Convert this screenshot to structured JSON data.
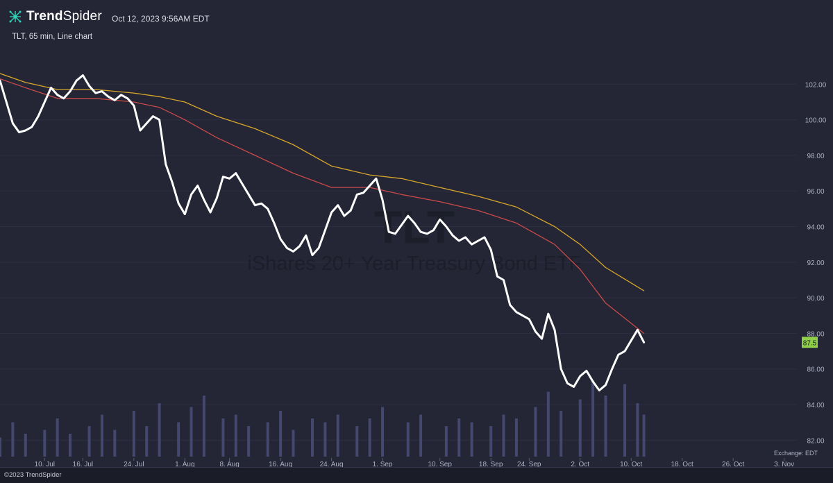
{
  "header": {
    "brand_bold": "Trend",
    "brand_light": "Spider",
    "timestamp": "Oct 12, 2023 9:56AM EDT",
    "chart_description": "TLT, 65 min, Line chart"
  },
  "watermark": {
    "symbol": "TLT",
    "name": "iShares 20+ Year Treasury Bond ETF"
  },
  "exchange_label": "Exchange: EDT",
  "footer": {
    "copyright": "©2023 TrendSpider"
  },
  "colors": {
    "background": "#242635",
    "price": "#ffffff",
    "ma_fast": "#c94a4a",
    "ma_slow": "#d8a72a",
    "last_price_badge": "#8fcf4a",
    "volume": "#4a4e78"
  },
  "chart_data": {
    "type": "line",
    "title": "TLT, 65 min, Line chart",
    "ylim": [
      81,
      104
    ],
    "y_ticks": [
      82,
      84,
      86,
      88,
      90,
      92,
      94,
      96,
      98,
      100,
      102
    ],
    "y_tick_labels": [
      "82.00",
      "84.00",
      "86.00",
      "88.00",
      "90.00",
      "92.00",
      "94.00",
      "96.00",
      "98.00",
      "100.00",
      "102.00"
    ],
    "x_range": [
      "2023-07-03",
      "2023-11-05"
    ],
    "x_ticks": [
      "2023-07-10",
      "2023-07-16",
      "2023-07-24",
      "2023-08-01",
      "2023-08-08",
      "2023-08-16",
      "2023-08-24",
      "2023-09-01",
      "2023-09-10",
      "2023-09-18",
      "2023-09-24",
      "2023-10-02",
      "2023-10-10",
      "2023-10-18",
      "2023-10-26",
      "2023-11-03"
    ],
    "x_tick_labels": [
      "10. Jul",
      "16. Jul",
      "24. Jul",
      "1. Aug",
      "8. Aug",
      "16. Aug",
      "24. Aug",
      "1. Sep",
      "10. Sep",
      "18. Sep",
      "24. Sep",
      "2. Oct",
      "10. Oct",
      "18. Oct",
      "26. Oct",
      "3. Nov"
    ],
    "last_price": 87.5,
    "last_price_label": "87.5",
    "series": [
      {
        "key": "price",
        "x": [
          "2023-07-03",
          "2023-07-04",
          "2023-07-05",
          "2023-07-06",
          "2023-07-07",
          "2023-07-08",
          "2023-07-09",
          "2023-07-10",
          "2023-07-11",
          "2023-07-12",
          "2023-07-13",
          "2023-07-14",
          "2023-07-15",
          "2023-07-16",
          "2023-07-17",
          "2023-07-18",
          "2023-07-19",
          "2023-07-20",
          "2023-07-21",
          "2023-07-22",
          "2023-07-23",
          "2023-07-24",
          "2023-07-25",
          "2023-07-26",
          "2023-07-27",
          "2023-07-28",
          "2023-07-29",
          "2023-07-30",
          "2023-07-31",
          "2023-08-01",
          "2023-08-02",
          "2023-08-03",
          "2023-08-04",
          "2023-08-05",
          "2023-08-06",
          "2023-08-07",
          "2023-08-08",
          "2023-08-09",
          "2023-08-10",
          "2023-08-11",
          "2023-08-12",
          "2023-08-13",
          "2023-08-14",
          "2023-08-15",
          "2023-08-16",
          "2023-08-17",
          "2023-08-18",
          "2023-08-19",
          "2023-08-20",
          "2023-08-21",
          "2023-08-22",
          "2023-08-23",
          "2023-08-24",
          "2023-08-25",
          "2023-08-26",
          "2023-08-27",
          "2023-08-28",
          "2023-08-29",
          "2023-08-30",
          "2023-08-31",
          "2023-09-01",
          "2023-09-02",
          "2023-09-03",
          "2023-09-04",
          "2023-09-05",
          "2023-09-06",
          "2023-09-07",
          "2023-09-08",
          "2023-09-09",
          "2023-09-10",
          "2023-09-11",
          "2023-09-12",
          "2023-09-13",
          "2023-09-14",
          "2023-09-15",
          "2023-09-16",
          "2023-09-17",
          "2023-09-18",
          "2023-09-19",
          "2023-09-20",
          "2023-09-21",
          "2023-09-22",
          "2023-09-23",
          "2023-09-24",
          "2023-09-25",
          "2023-09-26",
          "2023-09-27",
          "2023-09-28",
          "2023-09-29",
          "2023-09-30",
          "2023-10-01",
          "2023-10-02",
          "2023-10-03",
          "2023-10-04",
          "2023-10-05",
          "2023-10-06",
          "2023-10-07",
          "2023-10-08",
          "2023-10-09",
          "2023-10-10",
          "2023-10-11",
          "2023-10-12"
        ],
        "values": [
          102.2,
          101.0,
          99.8,
          99.3,
          99.4,
          99.6,
          100.2,
          101.0,
          101.8,
          101.4,
          101.2,
          101.6,
          102.2,
          102.5,
          101.9,
          101.5,
          101.6,
          101.3,
          101.1,
          101.4,
          101.2,
          100.8,
          99.4,
          99.8,
          100.2,
          100.0,
          97.5,
          96.5,
          95.3,
          94.7,
          95.8,
          96.3,
          95.5,
          94.8,
          95.6,
          96.8,
          96.7,
          97.0,
          96.4,
          95.8,
          95.2,
          95.3,
          95.0,
          94.2,
          93.3,
          92.8,
          92.6,
          92.9,
          93.5,
          92.4,
          92.8,
          93.8,
          94.8,
          95.2,
          94.6,
          94.9,
          95.8,
          95.9,
          96.3,
          96.7,
          95.5,
          93.7,
          93.6,
          94.1,
          94.6,
          94.2,
          93.7,
          93.6,
          93.8,
          94.4,
          94.0,
          93.5,
          93.2,
          93.4,
          93.0,
          93.2,
          93.4,
          92.7,
          91.2,
          91.0,
          89.6,
          89.2,
          89.0,
          88.8,
          88.1,
          87.7,
          89.1,
          88.2,
          86.0,
          85.2,
          85.0,
          85.6,
          85.9,
          85.3,
          84.8,
          85.1,
          86.0,
          86.8,
          87.0,
          87.6,
          88.2,
          87.5
        ]
      },
      {
        "key": "ma_fast",
        "x": [
          "2023-07-03",
          "2023-07-07",
          "2023-07-12",
          "2023-07-18",
          "2023-07-24",
          "2023-07-28",
          "2023-08-01",
          "2023-08-06",
          "2023-08-12",
          "2023-08-18",
          "2023-08-24",
          "2023-08-30",
          "2023-09-04",
          "2023-09-10",
          "2023-09-16",
          "2023-09-22",
          "2023-09-28",
          "2023-10-02",
          "2023-10-06",
          "2023-10-12"
        ],
        "values": [
          102.3,
          101.8,
          101.2,
          101.2,
          101.0,
          100.7,
          100.0,
          99.0,
          98.0,
          97.0,
          96.2,
          96.2,
          95.8,
          95.4,
          94.9,
          94.2,
          93.0,
          91.6,
          89.7,
          88.0
        ]
      },
      {
        "key": "ma_slow",
        "x": [
          "2023-07-03",
          "2023-07-07",
          "2023-07-12",
          "2023-07-18",
          "2023-07-24",
          "2023-07-28",
          "2023-08-01",
          "2023-08-06",
          "2023-08-12",
          "2023-08-18",
          "2023-08-24",
          "2023-08-30",
          "2023-09-04",
          "2023-09-10",
          "2023-09-16",
          "2023-09-22",
          "2023-09-28",
          "2023-10-02",
          "2023-10-06",
          "2023-10-12"
        ],
        "values": [
          102.6,
          102.1,
          101.7,
          101.7,
          101.5,
          101.3,
          101.0,
          100.2,
          99.5,
          98.6,
          97.4,
          96.9,
          96.7,
          96.2,
          95.7,
          95.1,
          94.0,
          93.0,
          91.7,
          90.4
        ]
      },
      {
        "key": "volume",
        "x": [
          "2023-07-03",
          "2023-07-05",
          "2023-07-07",
          "2023-07-10",
          "2023-07-12",
          "2023-07-14",
          "2023-07-17",
          "2023-07-19",
          "2023-07-21",
          "2023-07-24",
          "2023-07-26",
          "2023-07-28",
          "2023-07-31",
          "2023-08-02",
          "2023-08-04",
          "2023-08-07",
          "2023-08-09",
          "2023-08-11",
          "2023-08-14",
          "2023-08-16",
          "2023-08-18",
          "2023-08-21",
          "2023-08-23",
          "2023-08-25",
          "2023-08-28",
          "2023-08-30",
          "2023-09-01",
          "2023-09-05",
          "2023-09-07",
          "2023-09-11",
          "2023-09-13",
          "2023-09-15",
          "2023-09-18",
          "2023-09-20",
          "2023-09-22",
          "2023-09-25",
          "2023-09-27",
          "2023-09-29",
          "2023-10-02",
          "2023-10-04",
          "2023-10-06",
          "2023-10-09",
          "2023-10-11",
          "2023-10-12"
        ],
        "values": [
          0.25,
          0.45,
          0.3,
          0.35,
          0.5,
          0.3,
          0.4,
          0.55,
          0.35,
          0.6,
          0.4,
          0.7,
          0.45,
          0.65,
          0.8,
          0.5,
          0.55,
          0.4,
          0.45,
          0.6,
          0.35,
          0.5,
          0.45,
          0.55,
          0.4,
          0.5,
          0.65,
          0.45,
          0.55,
          0.4,
          0.5,
          0.45,
          0.4,
          0.55,
          0.5,
          0.65,
          0.85,
          0.6,
          0.75,
          1.0,
          0.8,
          0.95,
          0.7,
          0.55
        ]
      }
    ]
  }
}
